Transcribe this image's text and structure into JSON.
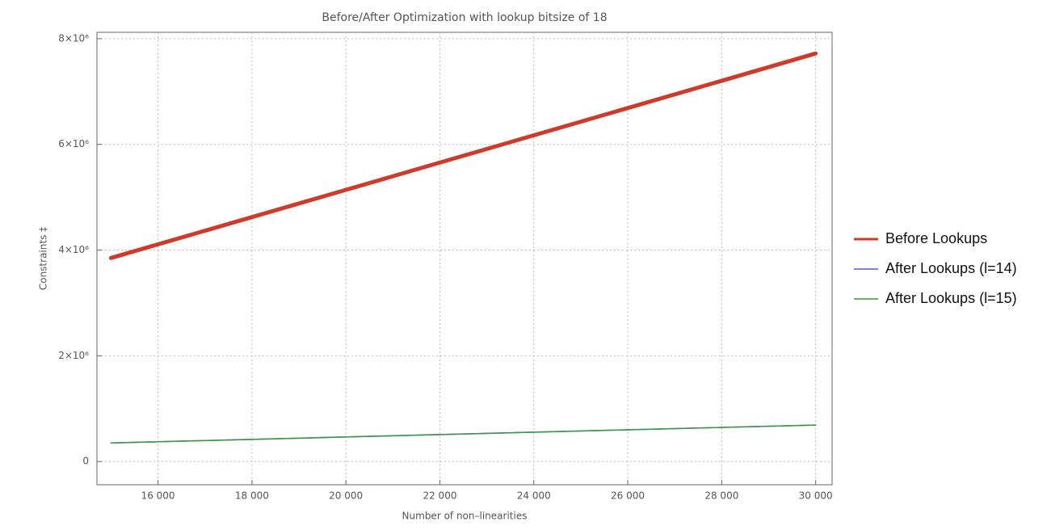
{
  "chart_data": {
    "type": "line",
    "title": "Before/After Optimization with lookup bitsize of 18",
    "x_label": "Number of non–linearities",
    "y_label": "Constraints ‡",
    "x": [
      15000,
      20000,
      25000,
      30000
    ],
    "series": [
      {
        "name": "Before Lookups",
        "color": "#d03a2a",
        "width": 5,
        "values": [
          3850000,
          5140000,
          6430000,
          7720000
        ]
      },
      {
        "name": "After Lookups (l=14)",
        "color": "#5555e0",
        "width": 1.5,
        "values": [
          352000,
          465000,
          578000,
          690000
        ]
      },
      {
        "name": "After Lookups (l=15)",
        "color": "#3a9a3a",
        "width": 1.5,
        "values": [
          350000,
          463000,
          577000,
          690000
        ]
      }
    ],
    "xlim": [
      14700,
      30350
    ],
    "ylim": [
      -440000,
      8120000
    ],
    "xticks": [
      {
        "value": 16000,
        "label": "16 000"
      },
      {
        "value": 18000,
        "label": "18 000"
      },
      {
        "value": 20000,
        "label": "20 000"
      },
      {
        "value": 22000,
        "label": "22 000"
      },
      {
        "value": 24000,
        "label": "24 000"
      },
      {
        "value": 26000,
        "label": "26 000"
      },
      {
        "value": 28000,
        "label": "28 000"
      },
      {
        "value": 30000,
        "label": "30 000"
      }
    ],
    "yticks": [
      0,
      {
        "value": 2000000,
        "label": "2×10⁶"
      },
      {
        "value": 4000000,
        "label": "4×10⁶"
      },
      {
        "value": 6000000,
        "label": "6×10⁶"
      },
      {
        "value": 8000000,
        "label": "8×10⁶"
      }
    ],
    "grid": true,
    "legend": "right"
  }
}
